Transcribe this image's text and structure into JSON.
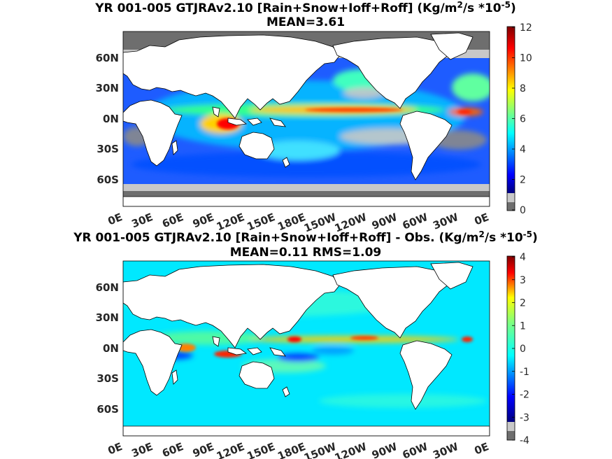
{
  "panels": [
    {
      "title_main": "YR 001-005 GTJRAv2.10 [Rain+Snow+Ioff+Roff] (Kg/m",
      "title_sup1": "2",
      "title_mid": "/s *10",
      "title_sup2": "-5",
      "title_end": ")",
      "subtitle": "MEAN=3.61",
      "colorbar_ticks": [
        "0",
        "2",
        "4",
        "6",
        "8",
        "10",
        "12"
      ],
      "colorbar_range": [
        0,
        12
      ],
      "field": "total-precipitation"
    },
    {
      "title_main": "YR 001-005 GTJRAv2.10 [Rain+Snow+Ioff+Roff] - Obs. (Kg/m",
      "title_sup1": "2",
      "title_mid": "/s *10",
      "title_sup2": "-5",
      "title_end": ")",
      "subtitle": "MEAN=0.11   RMS=1.09",
      "colorbar_ticks": [
        "-4",
        "-3",
        "-2",
        "-1",
        "0",
        "1",
        "2",
        "3",
        "4"
      ],
      "colorbar_range": [
        -4,
        4
      ],
      "field": "difference-from-observation"
    }
  ],
  "axes": {
    "lat_ticks": [
      "60N",
      "30N",
      "0N",
      "30S",
      "60S"
    ],
    "lat_values": [
      60,
      30,
      0,
      -30,
      -60
    ],
    "lon_ticks": [
      "0E",
      "30E",
      "60E",
      "90E",
      "120E",
      "150E",
      "180E",
      "150W",
      "120W",
      "90W",
      "60W",
      "30W",
      "0E"
    ],
    "lon_values": [
      0,
      30,
      60,
      90,
      120,
      150,
      180,
      210,
      240,
      270,
      300,
      330,
      360
    ],
    "lat_range": [
      -80,
      87
    ],
    "lon_range": [
      0,
      360
    ]
  },
  "colormap": "jet",
  "colors": {
    "land": "#ffffff",
    "sea_ice_dark": "#6e6e6e",
    "sea_ice_light": "#c8c8c8"
  }
}
